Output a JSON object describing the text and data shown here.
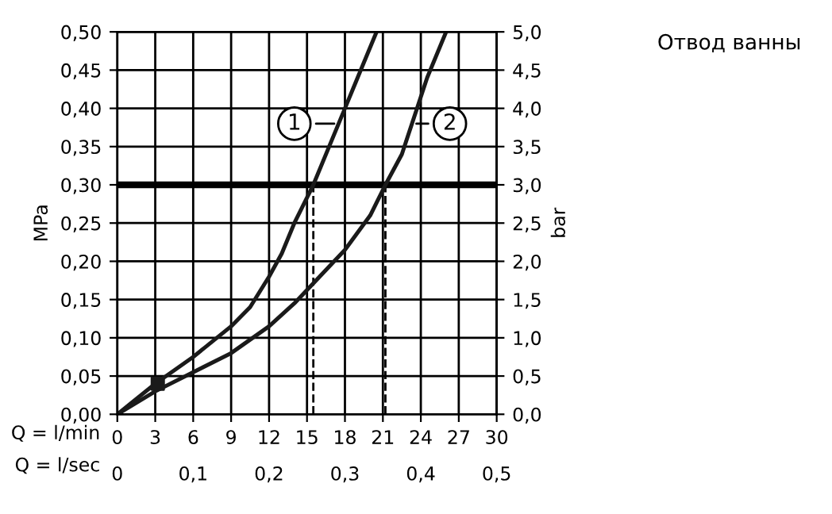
{
  "chart_data": {
    "type": "line",
    "title": "Отвод ванны",
    "xlabel": "Q = l/min",
    "x2label": "Q = l/sec",
    "ylabel": "MPa",
    "y2label": "bar",
    "xlim": [
      0,
      30
    ],
    "xticks": [
      0,
      3,
      6,
      9,
      12,
      15,
      18,
      21,
      24,
      27,
      30
    ],
    "x2lim": [
      0,
      0.5
    ],
    "x2ticks": [
      0,
      {
        "value": 0.1,
        "label": "0,1"
      },
      {
        "value": 0.2,
        "label": "0,2"
      },
      {
        "value": 0.3,
        "label": "0,3"
      },
      {
        "value": 0.4,
        "label": "0,4"
      },
      {
        "value": 0.5,
        "label": "0,5"
      }
    ],
    "ylim": [
      0,
      0.5
    ],
    "yticks": [
      {
        "value": 0,
        "label": "0,00"
      },
      {
        "value": 0.05,
        "label": "0,05"
      },
      {
        "value": 0.1,
        "label": "0,10"
      },
      {
        "value": 0.15,
        "label": "0,15"
      },
      {
        "value": 0.2,
        "label": "0,20"
      },
      {
        "value": 0.25,
        "label": "0,25"
      },
      {
        "value": 0.3,
        "label": "0,30"
      },
      {
        "value": 0.35,
        "label": "0,35"
      },
      {
        "value": 0.4,
        "label": "0,40"
      },
      {
        "value": 0.45,
        "label": "0,45"
      },
      {
        "value": 0.5,
        "label": "0,50"
      }
    ],
    "y2lim": [
      0,
      5
    ],
    "y2ticks": [
      {
        "value": 0,
        "label": "0,0"
      },
      {
        "value": 0.5,
        "label": "0,5"
      },
      {
        "value": 1,
        "label": "1,0"
      },
      {
        "value": 1.5,
        "label": "1,5"
      },
      {
        "value": 2,
        "label": "2,0"
      },
      {
        "value": 2.5,
        "label": "2,5"
      },
      {
        "value": 3,
        "label": "3,0"
      },
      {
        "value": 3.5,
        "label": "3,5"
      },
      {
        "value": 4,
        "label": "4,0"
      },
      {
        "value": 4.5,
        "label": "4,5"
      },
      {
        "value": 5,
        "label": "5,0"
      }
    ],
    "grid": true,
    "legend": false,
    "line_style": "solid",
    "series": [
      {
        "name": "1",
        "color": "#1a1a1a",
        "x": [
          0,
          3,
          6,
          9,
          10.5,
          12,
          13,
          14,
          15.5,
          17,
          18,
          19,
          20.5
        ],
        "values": [
          0,
          0.04,
          0.075,
          0.115,
          0.14,
          0.18,
          0.21,
          0.25,
          0.3,
          0.36,
          0.4,
          0.44,
          0.5
        ]
      },
      {
        "name": "2",
        "color": "#1a1a1a",
        "x": [
          0,
          3,
          6,
          9,
          12,
          14,
          16,
          18,
          20,
          21.2,
          22.5,
          23.5,
          24.5,
          26
        ],
        "values": [
          0,
          0.03,
          0.055,
          0.08,
          0.115,
          0.145,
          0.18,
          0.215,
          0.26,
          0.3,
          0.34,
          0.39,
          0.44,
          0.5
        ]
      },
      {
        "type": "scatter",
        "marker": "square",
        "color": "#1a1a1a",
        "x": [
          3.2
        ],
        "values": [
          0.04
        ]
      }
    ],
    "ref_lines": [
      {
        "axis": "y",
        "value": 0.3,
        "color": "#000000",
        "line_style": "solid"
      },
      {
        "axis": "x",
        "value": 15.5,
        "color": "#000000",
        "line_style": "dashed"
      },
      {
        "axis": "x",
        "value": 21.2,
        "color": "#000000",
        "line_style": "dashed"
      }
    ]
  }
}
